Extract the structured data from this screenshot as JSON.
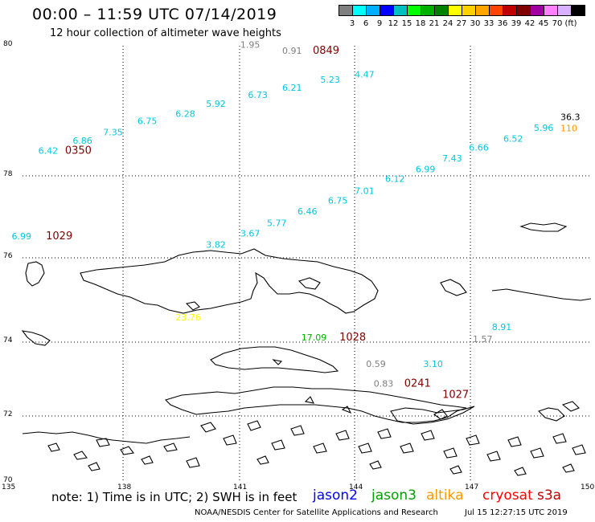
{
  "header": {
    "title": "00:00 – 11:59 UTC 07/14/2019",
    "subtitle": "12 hour collection of altimeter wave heights"
  },
  "legend": {
    "colors": [
      "#7f7f7f",
      "#00ffff",
      "#00b0ff",
      "#0000ff",
      "#00bfbf",
      "#00ff00",
      "#00b000",
      "#008000",
      "#ffff00",
      "#ffd000",
      "#ffa500",
      "#ff4500",
      "#c00000",
      "#800000",
      "#a000a0",
      "#ff80ff",
      "#d8b0ff",
      "#000000"
    ],
    "labels": [
      "3",
      "6",
      "9",
      "12",
      "15",
      "18",
      "21",
      "24",
      "27",
      "30",
      "33",
      "36",
      "39",
      "42",
      "45",
      "70",
      "(ft)"
    ]
  },
  "axes": {
    "lat_labels": [
      "80",
      "78",
      "76",
      "74",
      "72",
      "70"
    ],
    "lon_labels": [
      "135",
      "138",
      "141",
      "144",
      "147",
      "150"
    ]
  },
  "observations": [
    {
      "text": "1.95",
      "color": "#7f7f7f",
      "lon": 141.2,
      "lat": 79.95
    },
    {
      "text": "0.91",
      "color": "#7f7f7f",
      "lon": 142.3,
      "lat": 79.82
    },
    {
      "text": "0849",
      "color": "#800000",
      "lon": 143.1,
      "lat": 79.82
    },
    {
      "text": "4.47",
      "color": "#00c8e0",
      "lon": 144.2,
      "lat": 79.27
    },
    {
      "text": "5.23",
      "color": "#00c8e0",
      "lon": 143.3,
      "lat": 79.15
    },
    {
      "text": "6.21",
      "color": "#00c8e0",
      "lon": 142.3,
      "lat": 78.97
    },
    {
      "text": "6.73",
      "color": "#00c8e0",
      "lon": 141.4,
      "lat": 78.8
    },
    {
      "text": "5.92",
      "color": "#00c8e0",
      "lon": 140.3,
      "lat": 78.6
    },
    {
      "text": "6.28",
      "color": "#00c8e0",
      "lon": 139.5,
      "lat": 78.37
    },
    {
      "text": "6.75",
      "color": "#00c8e0",
      "lon": 138.5,
      "lat": 78.2
    },
    {
      "text": "7.35",
      "color": "#00c8e0",
      "lon": 137.6,
      "lat": 77.95
    },
    {
      "text": "6.86",
      "color": "#00c8e0",
      "lon": 136.8,
      "lat": 77.75
    },
    {
      "text": "6.42",
      "color": "#00c8e0",
      "lon": 135.9,
      "lat": 77.52
    },
    {
      "text": "0350",
      "color": "#800000",
      "lon": 136.6,
      "lat": 77.52
    },
    {
      "text": "36.3",
      "color": "#000000",
      "lon": 149.6,
      "lat": 78.3
    },
    {
      "text": "110",
      "color": "#ff9900",
      "lon": 149.6,
      "lat": 78.04
    },
    {
      "text": "5.96",
      "color": "#00c8e0",
      "lon": 148.9,
      "lat": 78.05
    },
    {
      "text": "6.52",
      "color": "#00c8e0",
      "lon": 148.1,
      "lat": 77.8
    },
    {
      "text": "6.66",
      "color": "#00c8e0",
      "lon": 147.2,
      "lat": 77.6
    },
    {
      "text": "7.43",
      "color": "#00c8e0",
      "lon": 146.5,
      "lat": 77.35
    },
    {
      "text": "6.99",
      "color": "#00c8e0",
      "lon": 145.8,
      "lat": 77.1
    },
    {
      "text": "6.12",
      "color": "#00c8e0",
      "lon": 145.0,
      "lat": 76.88
    },
    {
      "text": "7.01",
      "color": "#00c8e0",
      "lon": 144.2,
      "lat": 76.6
    },
    {
      "text": "6.75",
      "color": "#00c8e0",
      "lon": 143.5,
      "lat": 76.38
    },
    {
      "text": "6.46",
      "color": "#00c8e0",
      "lon": 142.7,
      "lat": 76.13
    },
    {
      "text": "5.77",
      "color": "#00c8e0",
      "lon": 141.9,
      "lat": 75.87
    },
    {
      "text": "3.67",
      "color": "#00c8e0",
      "lon": 141.2,
      "lat": 75.63
    },
    {
      "text": "3.82",
      "color": "#00c8e0",
      "lon": 140.3,
      "lat": 75.37
    },
    {
      "text": "6.99",
      "color": "#00c8e0",
      "lon": 135.2,
      "lat": 75.56
    },
    {
      "text": "1029",
      "color": "#800000",
      "lon": 136.1,
      "lat": 75.56
    },
    {
      "text": "23.76",
      "color": "#ffff00",
      "lon": 139.5,
      "lat": 73.7
    },
    {
      "text": "17.09",
      "color": "#00b000",
      "lon": 142.8,
      "lat": 73.24
    },
    {
      "text": "1028",
      "color": "#800000",
      "lon": 143.8,
      "lat": 73.24
    },
    {
      "text": "8.91",
      "color": "#00c8e0",
      "lon": 147.8,
      "lat": 73.48
    },
    {
      "text": "1.57",
      "color": "#7f7f7f",
      "lon": 147.3,
      "lat": 73.2
    },
    {
      "text": "0.59",
      "color": "#7f7f7f",
      "lon": 144.5,
      "lat": 72.63
    },
    {
      "text": "3.10",
      "color": "#00c8e0",
      "lon": 146.0,
      "lat": 72.63
    },
    {
      "text": "0.83",
      "color": "#7f7f7f",
      "lon": 144.7,
      "lat": 72.18
    },
    {
      "text": "0241",
      "color": "#800000",
      "lon": 145.5,
      "lat": 72.18
    },
    {
      "text": "1027",
      "color": "#800000",
      "lon": 146.5,
      "lat": 71.92
    }
  ],
  "footer": {
    "note": "note:  1) Time is in UTC;  2) SWH is in feet",
    "satellites": [
      {
        "name": "jason2",
        "color": "#0000ff"
      },
      {
        "name": "jason3",
        "color": "#00a000"
      },
      {
        "name": "altika",
        "color": "#ff9900"
      },
      {
        "name": "cryosat",
        "color": "#ff0000"
      },
      {
        "name": "s3a",
        "color": "#c00000"
      }
    ],
    "credit": "NOAA/NESDIS Center for Satellite Applications and Research",
    "timestamp": "Jul 15 12:27:15 UTC 2019"
  }
}
